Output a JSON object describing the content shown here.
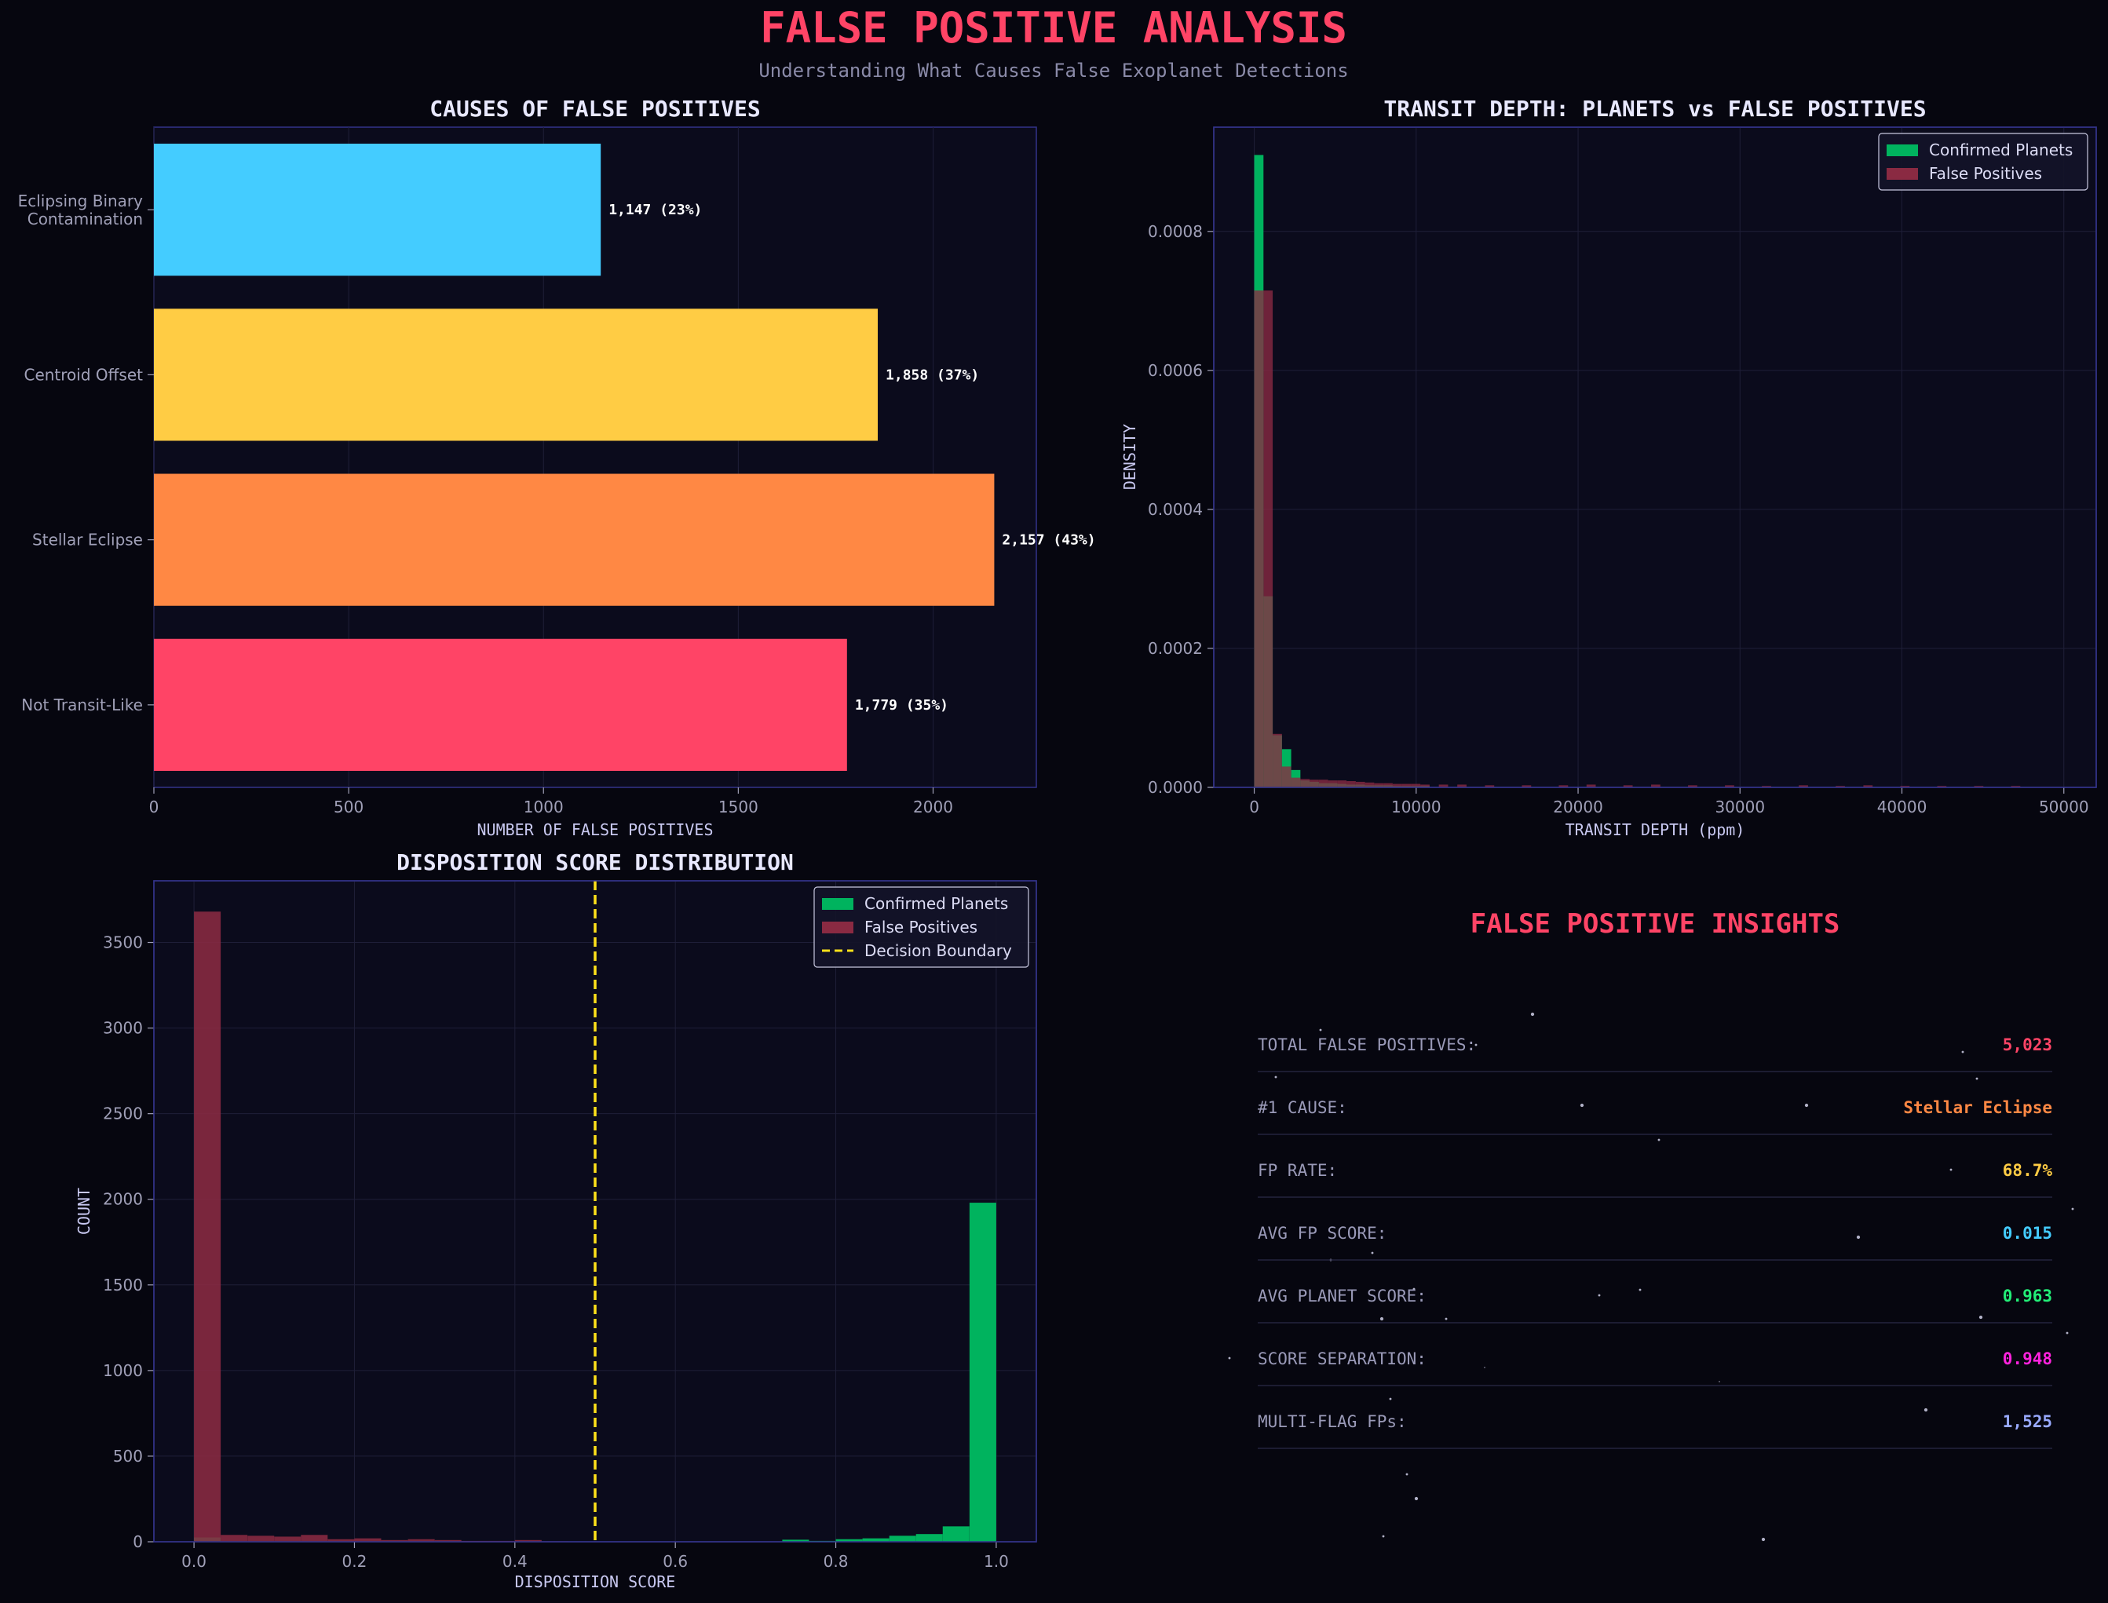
{
  "page": {
    "title": "FALSE POSITIVE ANALYSIS",
    "subtitle": "Understanding What Causes False Exoplanet Detections"
  },
  "colors": {
    "background": "#06060f",
    "panel": "#0b0b1c",
    "spine": "#33338a",
    "title_red": "#ff4466",
    "planet_green": "#00b35e",
    "fp_maroon": "#8a2a42",
    "boundary_yellow": "#ffe11a",
    "axis_text": "#a0a0b8",
    "label_text": "#c8c8f0"
  },
  "chart_data": [
    {
      "type": "bar",
      "orientation": "horizontal",
      "title": "CAUSES OF FALSE POSITIVES",
      "xlabel": "NUMBER OF FALSE POSITIVES",
      "ylabel": "",
      "xlim": [
        0,
        2265
      ],
      "xticks": [
        0,
        500,
        1000,
        1500,
        2000
      ],
      "categories": [
        "Eclipsing Binary\nContamination",
        "Centroid Offset",
        "Stellar Eclipse",
        "Not Transit-Like"
      ],
      "values": [
        1147,
        1858,
        2157,
        1779
      ],
      "data_labels": [
        "1,147 (23%)",
        "1,858 (37%)",
        "2,157 (43%)",
        "1,779 (35%)"
      ],
      "colors": [
        "#44ccff",
        "#ffcc44",
        "#ff8844",
        "#ff4466"
      ],
      "grid": true
    },
    {
      "type": "histogram",
      "title": "TRANSIT DEPTH: PLANETS vs FALSE POSITIVES",
      "xlabel": "TRANSIT DEPTH (ppm)",
      "ylabel": "DENSITY",
      "xlim": [
        -2500,
        52000
      ],
      "ylim": [
        0,
        0.00095
      ],
      "xticks": [
        0,
        10000,
        20000,
        30000,
        40000,
        50000
      ],
      "yticks": [
        0,
        0.0002,
        0.0004,
        0.0006,
        0.0008
      ],
      "ytick_labels": [
        "0.0000",
        "0.0002",
        "0.0004",
        "0.0006",
        "0.0008"
      ],
      "bin_width": 570,
      "legend_position": "top-right",
      "series": [
        {
          "name": "Confirmed Planets",
          "color": "#00b35e",
          "bin_starts": [
            0,
            570,
            1140,
            1710,
            2280,
            2850,
            3420,
            3990,
            4560,
            5130,
            5700,
            6270,
            6840,
            7410,
            7980,
            8550,
            9120,
            9690,
            10260
          ],
          "values": [
            0.00091,
            0.000275,
            7.5e-05,
            5.5e-05,
            2.5e-05,
            1e-05,
            8e-06,
            6e-06,
            6e-06,
            5e-06,
            4e-06,
            4e-06,
            3e-06,
            3e-06,
            3e-06,
            2e-06,
            2e-06,
            2e-06,
            2e-06
          ]
        },
        {
          "name": "False Positives",
          "color": "#8a2a42",
          "bin_starts": [
            0,
            570,
            1140,
            1710,
            2280,
            2850,
            3420,
            3990,
            4560,
            5130,
            5700,
            6270,
            6840,
            7410,
            7980,
            8550,
            9120,
            9690,
            10260,
            11400,
            12540,
            14250,
            16530,
            18810,
            20520,
            22800,
            24510,
            26790,
            29070,
            31350,
            33630,
            35910,
            37620,
            39900,
            42180,
            44460,
            46740
          ],
          "values": [
            0.000715,
            0.000715,
            7.7e-05,
            3e-05,
            1.4e-05,
            1.2e-05,
            1.1e-05,
            1.1e-05,
            1e-05,
            1e-05,
            9e-06,
            8e-06,
            7e-06,
            6e-06,
            6e-06,
            5e-06,
            5e-06,
            5e-06,
            4e-06,
            4e-06,
            4e-06,
            3e-06,
            3e-06,
            3e-06,
            4e-06,
            3e-06,
            4e-06,
            3e-06,
            3e-06,
            2e-06,
            3e-06,
            2e-06,
            3e-06,
            2e-06,
            2e-06,
            2e-06,
            2e-06
          ]
        }
      ],
      "grid": true
    },
    {
      "type": "histogram",
      "title": "DISPOSITION SCORE DISTRIBUTION",
      "xlabel": "DISPOSITION SCORE",
      "ylabel": "COUNT",
      "xlim": [
        -0.05,
        1.05
      ],
      "ylim": [
        0,
        3860
      ],
      "xticks": [
        0,
        0.2,
        0.4,
        0.6,
        0.8,
        1.0
      ],
      "xtick_labels": [
        "0.0",
        "0.2",
        "0.4",
        "0.6",
        "0.8",
        "1.0"
      ],
      "yticks": [
        0,
        500,
        1000,
        1500,
        2000,
        2500,
        3000,
        3500
      ],
      "bin_width": 0.0333,
      "legend_position": "top-right",
      "decision_boundary": 0.5,
      "series": [
        {
          "name": "Confirmed Planets",
          "color": "#00b35e",
          "bin_starts": [
            0.0,
            0.7333,
            0.7667,
            0.8,
            0.8333,
            0.8667,
            0.9,
            0.9333,
            0.9667
          ],
          "values": [
            25,
            12,
            5,
            15,
            20,
            35,
            45,
            90,
            1980
          ]
        },
        {
          "name": "False Positives",
          "color": "#8a2a42",
          "bin_starts": [
            0.0,
            0.0333,
            0.0667,
            0.1,
            0.1333,
            0.1667,
            0.2,
            0.2333,
            0.2667,
            0.3,
            0.3333,
            0.3667,
            0.4,
            0.4333
          ],
          "values": [
            3680,
            40,
            35,
            30,
            40,
            15,
            20,
            10,
            15,
            10,
            5,
            5,
            10,
            3
          ]
        },
        {
          "name": "Decision Boundary",
          "color": "#ffe11a"
        }
      ],
      "grid": true
    }
  ],
  "insights": {
    "title": "FALSE POSITIVE INSIGHTS",
    "rows": [
      {
        "label": "TOTAL FALSE POSITIVES:",
        "value": "5,023",
        "color": "#ff4466"
      },
      {
        "label": "#1 CAUSE:",
        "value": "Stellar Eclipse",
        "color": "#ff8844"
      },
      {
        "label": "FP RATE:",
        "value": "68.7%",
        "color": "#ffcc44"
      },
      {
        "label": "AVG FP SCORE:",
        "value": "0.015",
        "color": "#44ccff"
      },
      {
        "label": "AVG PLANET SCORE:",
        "value": "0.963",
        "color": "#22ee77"
      },
      {
        "label": "SCORE SEPARATION:",
        "value": "0.948",
        "color": "#ff22dd"
      },
      {
        "label": "MULTI-FLAG FPs:",
        "value": "1,525",
        "color": "#99aaff"
      }
    ]
  }
}
